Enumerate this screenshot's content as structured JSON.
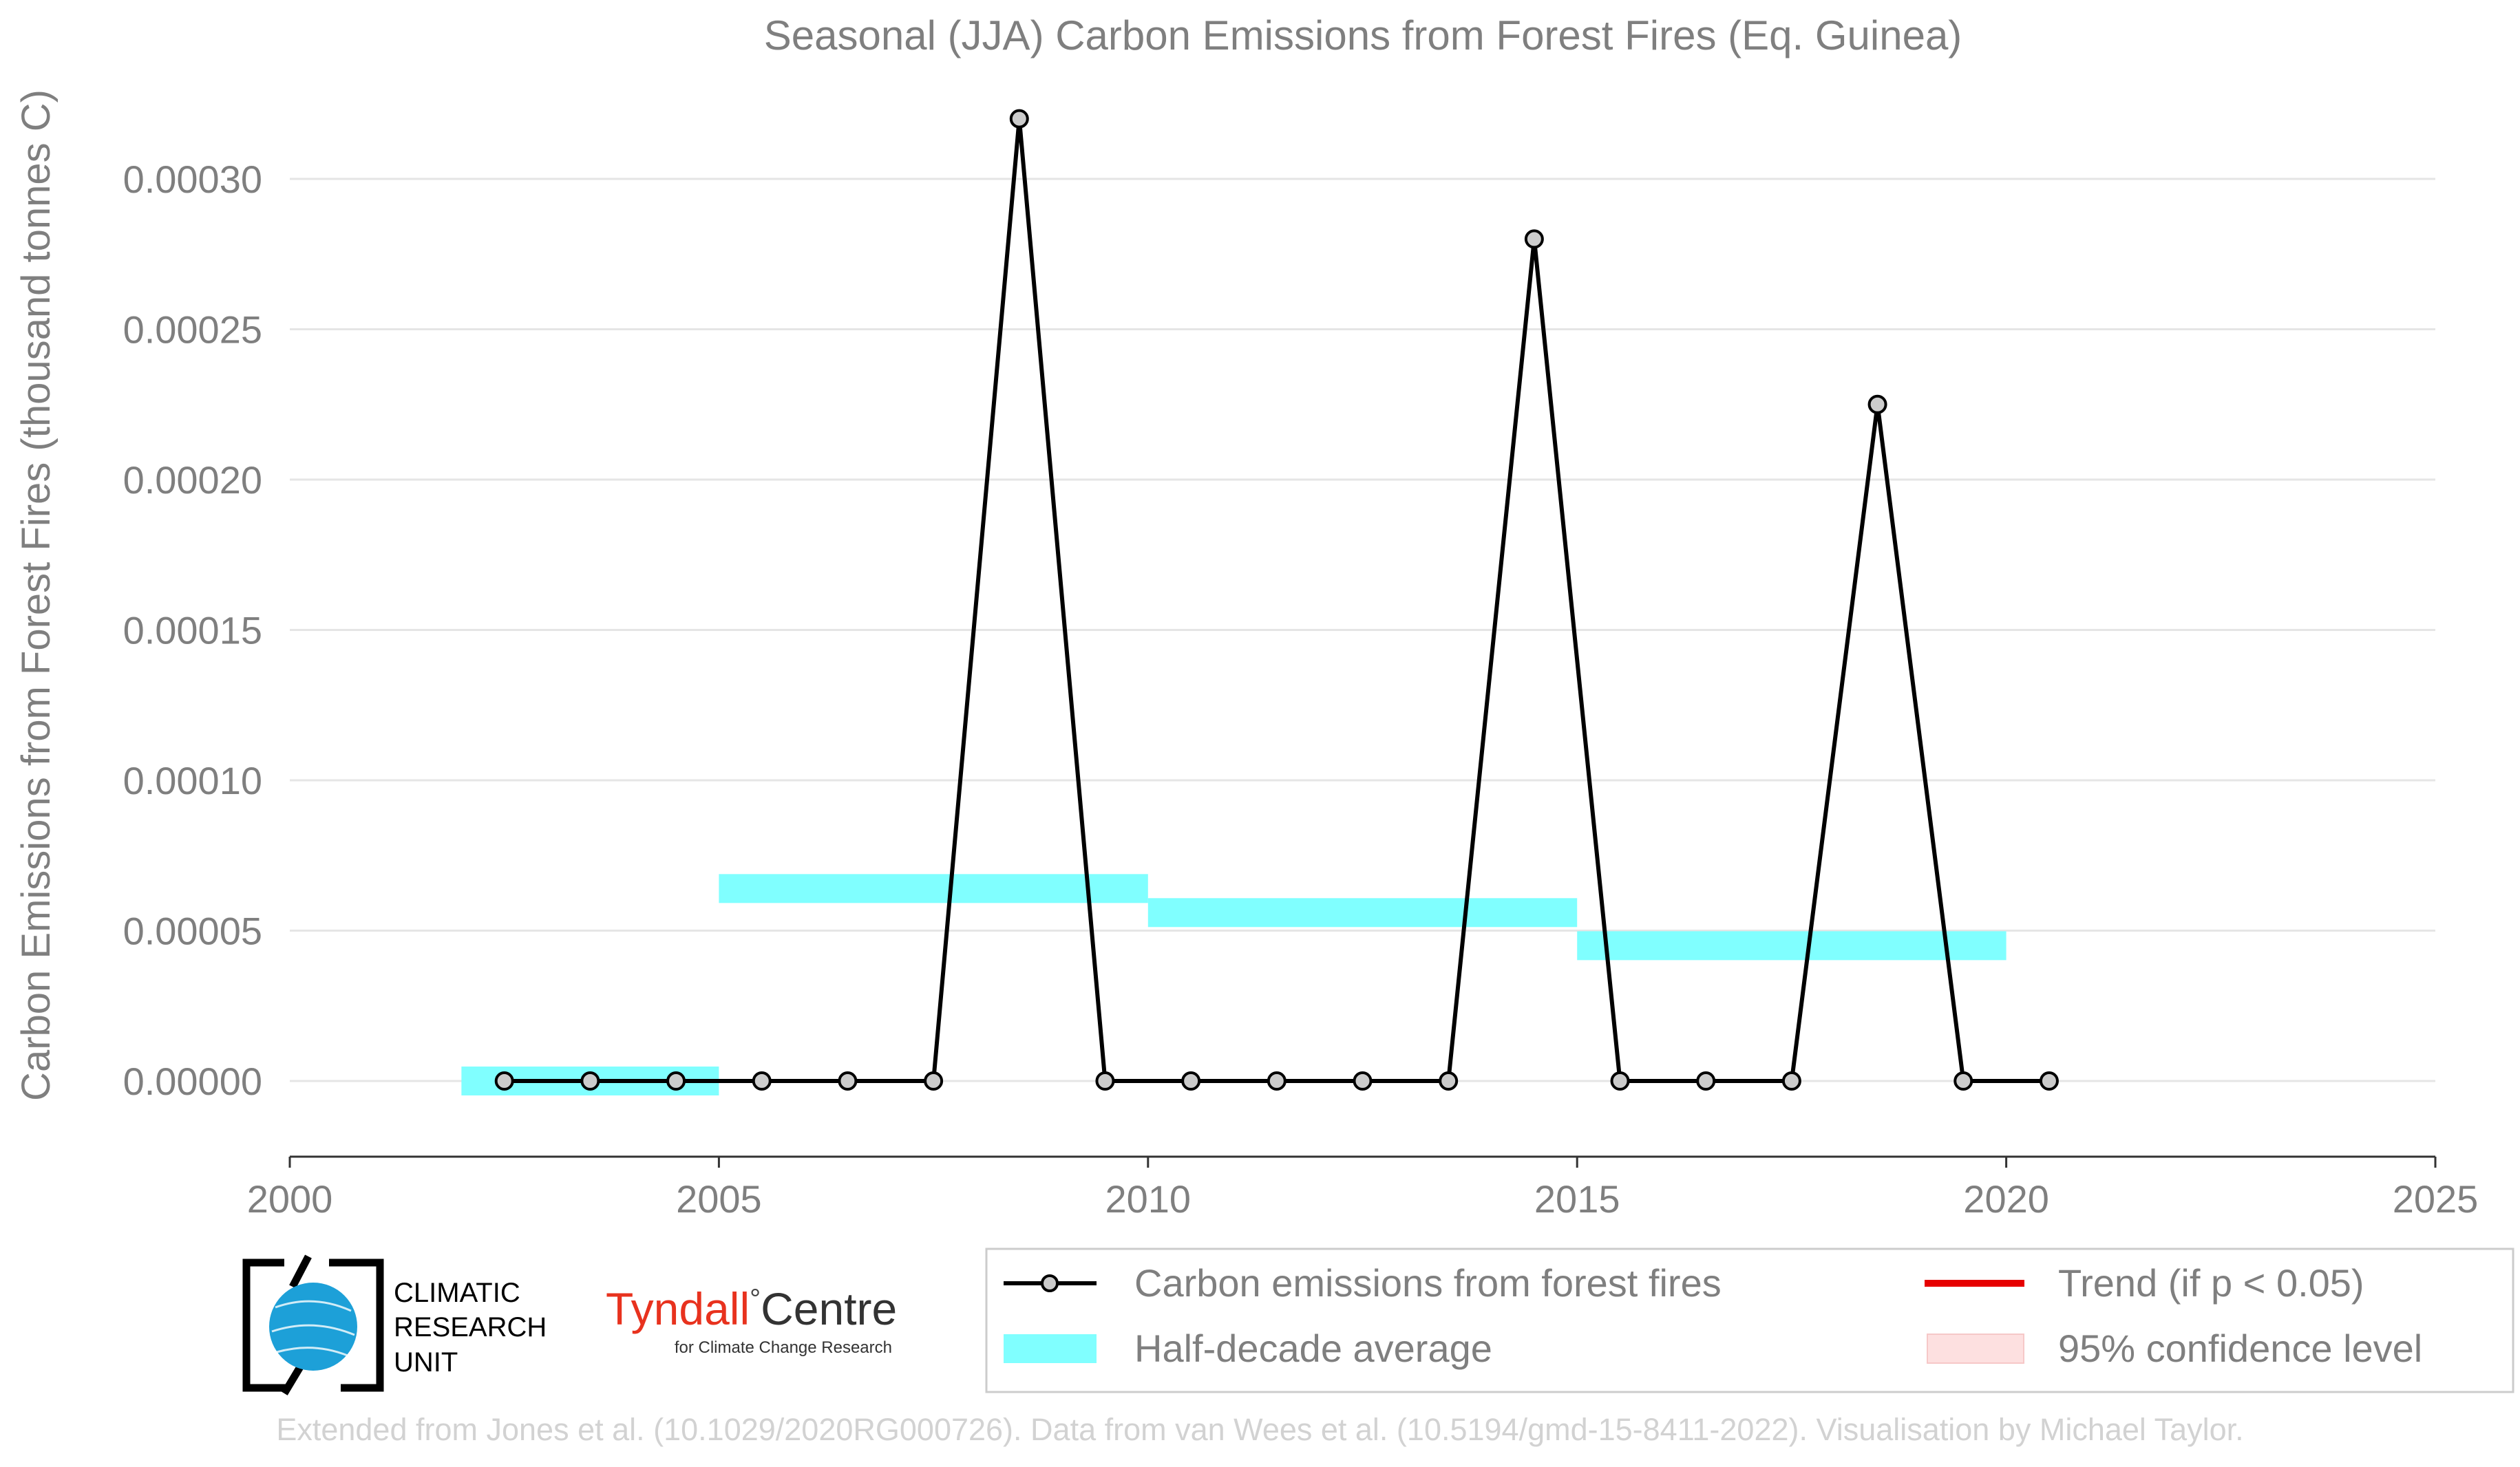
{
  "chart_data": {
    "type": "line",
    "title": "Seasonal (JJA) Carbon Emissions from Forest Fires (Eq. Guinea)",
    "xlabel": "",
    "ylabel": "Carbon Emissions from Forest Fires (thousand tonnes C)",
    "xlim": [
      2000,
      2025
    ],
    "ylim": [
      -2.5e-05,
      0.00032
    ],
    "xticks": [
      2000,
      2005,
      2010,
      2015,
      2020,
      2025
    ],
    "yticks": [
      0,
      5e-05,
      0.0001,
      0.00015,
      0.0002,
      0.00025,
      0.0003
    ],
    "ytick_labels": [
      "0.00000",
      "0.00005",
      "0.00010",
      "0.00015",
      "0.00020",
      "0.00025",
      "0.00030"
    ],
    "grid": "horizontal",
    "legend_position": "bottom-right",
    "series": [
      {
        "name": "Carbon emissions from forest fires",
        "color": "#000000",
        "marker_fill": "#cccccc",
        "x": [
          2002.5,
          2003.5,
          2004.5,
          2005.5,
          2006.5,
          2007.5,
          2008.5,
          2009.5,
          2010.5,
          2011.5,
          2012.5,
          2013.5,
          2014.5,
          2015.5,
          2016.5,
          2017.5,
          2018.5,
          2019.5,
          2020.5
        ],
        "y": [
          0,
          0,
          0,
          0,
          0,
          0,
          0.00032,
          0,
          0,
          0,
          0,
          0,
          0.00028,
          0,
          0,
          0,
          0.000225,
          0,
          0
        ]
      },
      {
        "name": "Half-decade average",
        "color": "#80ffff",
        "segments": [
          {
            "x0": 2002,
            "x1": 2005,
            "y": 0
          },
          {
            "x0": 2005,
            "x1": 2010,
            "y": 6.4e-05
          },
          {
            "x0": 2010,
            "x1": 2015,
            "y": 5.6e-05
          },
          {
            "x0": 2015,
            "x1": 2020,
            "y": 4.5e-05
          }
        ]
      }
    ],
    "legend": [
      {
        "label": "Carbon emissions from forest fires",
        "style": "line-marker",
        "color": "#000000"
      },
      {
        "label": "Trend (if p < 0.05)",
        "style": "line",
        "color": "#e60000"
      },
      {
        "label": "Half-decade average",
        "style": "band",
        "color": "#80ffff"
      },
      {
        "label": "95% confidence level",
        "style": "band",
        "color": "#fde0e0"
      }
    ]
  },
  "logos": {
    "cru": {
      "lines": [
        "CLIMATIC",
        "RESEARCH",
        "UNIT"
      ],
      "color": "#1da0d8"
    },
    "tyndall": {
      "name_red": "Tyndall",
      "degree": "°",
      "name_dark": "Centre",
      "subtitle": "for Climate Change Research",
      "red": "#e8321e"
    }
  },
  "credit": "Extended from Jones et al. (10.1029/2020RG000726). Data from van Wees et al. (10.5194/gmd-15-8411-2022). Visualisation by Michael Taylor."
}
